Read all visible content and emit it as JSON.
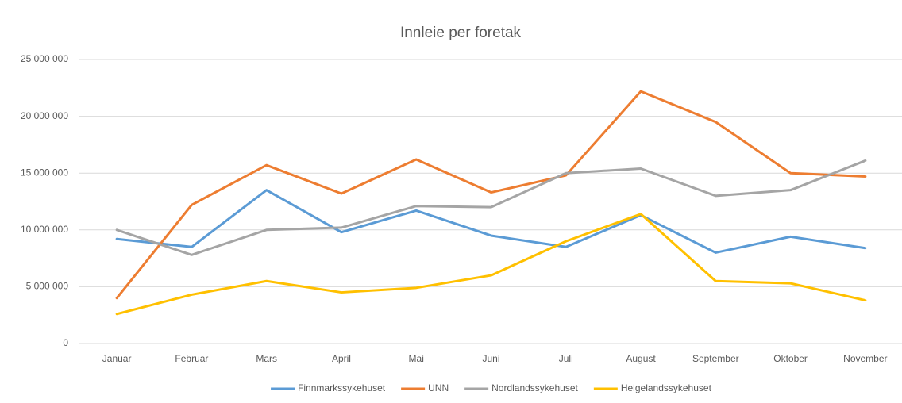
{
  "chart_data": {
    "type": "line",
    "title": "Innleie per foretak",
    "categories": [
      "Januar",
      "Februar",
      "Mars",
      "April",
      "Mai",
      "Juni",
      "Juli",
      "August",
      "September",
      "Oktober",
      "November"
    ],
    "series": [
      {
        "name": "Finnmarkssykehuset",
        "color": "#5b9bd5",
        "values": [
          9200000,
          8500000,
          13500000,
          9800000,
          11700000,
          9500000,
          8500000,
          11300000,
          8000000,
          9400000,
          8400000
        ]
      },
      {
        "name": "UNN",
        "color": "#ed7d31",
        "values": [
          4000000,
          12200000,
          15700000,
          13200000,
          16200000,
          13300000,
          14800000,
          22200000,
          19500000,
          15000000,
          14700000
        ]
      },
      {
        "name": "Nordlandssykehuset",
        "color": "#a5a5a5",
        "values": [
          10000000,
          7800000,
          10000000,
          10200000,
          12100000,
          12000000,
          15000000,
          15400000,
          13000000,
          13500000,
          16100000
        ]
      },
      {
        "name": "Helgelandssykehuset",
        "color": "#ffc000",
        "values": [
          2600000,
          4300000,
          5500000,
          4500000,
          4900000,
          6000000,
          9000000,
          11400000,
          5500000,
          5300000,
          3800000
        ]
      }
    ],
    "ylim": [
      0,
      25000000
    ],
    "yticks": [
      0,
      {
        "value": 5000000,
        "label": "5 000 000"
      },
      {
        "value": 10000000,
        "label": "10 000 000"
      },
      {
        "value": 15000000,
        "label": "15 000 000"
      },
      {
        "value": 20000000,
        "label": "20 000 000"
      },
      {
        "value": 25000000,
        "label": "25 000 000"
      }
    ],
    "grid": true,
    "legend": "bottom"
  }
}
